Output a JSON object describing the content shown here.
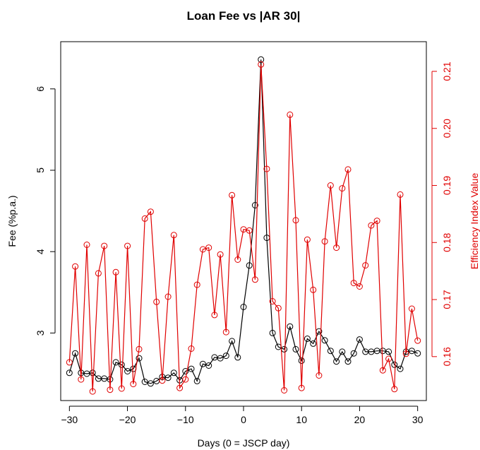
{
  "chart_data": {
    "type": "line",
    "title": "Loan Fee vs |AR 30|",
    "xlabel": "Days (0 = JSCP day)",
    "ylabel": "Fee (%p.a.)",
    "y2label": "Efficiency Index Value",
    "xlim": [
      -31.5,
      31.5
    ],
    "ylim": [
      2.17,
      6.58
    ],
    "y2lim": [
      0.1523,
      0.2152
    ],
    "xticks": [
      "-30",
      "-20",
      "-10",
      "0",
      "10",
      "20",
      "30"
    ],
    "yticks": [
      "3",
      "4",
      "5",
      "6"
    ],
    "y2ticks": [
      "0.16",
      "0.17",
      "0.18",
      "0.19",
      "0.20",
      "0.21"
    ],
    "grid": false,
    "x": [
      -30,
      -29,
      -28,
      -27,
      -26,
      -25,
      -24,
      -23,
      -22,
      -21,
      -20,
      -19,
      -18,
      -17,
      -16,
      -15,
      -14,
      -13,
      -12,
      -11,
      -10,
      -9,
      -8,
      -7,
      -6,
      -5,
      -4,
      -3,
      -2,
      -1,
      0,
      1,
      2,
      3,
      4,
      5,
      6,
      7,
      8,
      9,
      10,
      11,
      12,
      13,
      14,
      15,
      16,
      17,
      18,
      19,
      20,
      21,
      22,
      23,
      24,
      25,
      26,
      27,
      28,
      29,
      30
    ],
    "series": [
      {
        "axis": "left",
        "color": "#000000",
        "values": [
          2.51,
          2.75,
          2.51,
          2.5,
          2.51,
          2.44,
          2.44,
          2.43,
          2.64,
          2.61,
          2.53,
          2.56,
          2.69,
          2.4,
          2.38,
          2.41,
          2.46,
          2.45,
          2.51,
          2.42,
          2.53,
          2.56,
          2.41,
          2.62,
          2.6,
          2.7,
          2.69,
          2.72,
          2.9,
          2.7,
          3.32,
          3.83,
          4.57,
          6.36,
          4.17,
          3.0,
          2.83,
          2.8,
          3.08,
          2.8,
          2.66,
          2.93,
          2.87,
          3.02,
          2.91,
          2.78,
          2.65,
          2.77,
          2.65,
          2.75,
          2.92,
          2.77,
          2.77,
          2.78,
          2.78,
          2.77,
          2.61,
          2.56,
          2.77,
          2.78,
          2.75
        ]
      },
      {
        "axis": "right",
        "color": "#e00000",
        "values": [
          0.159,
          0.1758,
          0.156,
          0.1796,
          0.1539,
          0.1746,
          0.1794,
          0.1542,
          0.1748,
          0.1544,
          0.1794,
          0.1552,
          0.1613,
          0.1842,
          0.1854,
          0.1696,
          0.1558,
          0.1705,
          0.1813,
          0.1545,
          0.156,
          0.1614,
          0.1726,
          0.1788,
          0.1791,
          0.1673,
          0.1779,
          0.1643,
          0.1883,
          0.177,
          0.1823,
          0.1821,
          0.1735,
          0.2112,
          0.1929,
          0.1697,
          0.1685,
          0.1541,
          0.2024,
          0.1839,
          0.1545,
          0.1805,
          0.1717,
          0.1567,
          0.1802,
          0.19,
          0.1791,
          0.1895,
          0.1928,
          0.1729,
          0.1723,
          0.176,
          0.183,
          0.1838,
          0.1576,
          0.1596,
          0.1543,
          0.1884,
          0.1605,
          0.1684,
          0.1628
        ]
      }
    ]
  }
}
